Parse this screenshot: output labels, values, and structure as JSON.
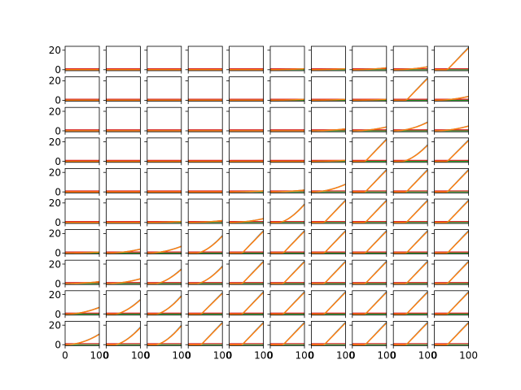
{
  "colors": {
    "series_blue": "#1f77b4",
    "series_orange": "#ff7f0e",
    "series_green": "#2ca02c",
    "series_red": "#d62728",
    "axes": "#000000",
    "background": "#ffffff"
  },
  "chart_data": {
    "type": "line",
    "layout": "small-multiples",
    "rows": 10,
    "cols": 10,
    "title": "",
    "xlabel": "",
    "ylabel": "",
    "xlim": [
      0,
      100
    ],
    "ylim": [
      -1,
      24
    ],
    "x_ticks": [
      0,
      100
    ],
    "x_tick_labels": [
      "0",
      "100"
    ],
    "y_ticks": [
      0,
      20
    ],
    "y_tick_labels": [
      "0",
      "20"
    ],
    "grid": false,
    "legend": "none",
    "series_note": "each panel shows four overlaid lines; two stay flat near 0/1 while two rise from 0 up to the final values given below",
    "panel_final_values": [
      [
        0,
        0,
        0,
        0,
        0,
        1,
        1,
        2,
        3,
        23
      ],
      [
        0,
        0,
        0,
        0,
        0,
        1,
        1,
        1,
        23,
        4
      ],
      [
        0,
        0,
        0,
        0,
        0,
        0,
        2,
        4,
        9,
        5
      ],
      [
        0,
        0,
        0,
        0,
        0,
        0,
        1,
        23,
        17,
        22
      ],
      [
        0,
        0,
        0,
        0,
        1,
        2,
        8,
        23,
        23,
        23
      ],
      [
        0,
        0,
        1,
        2,
        4,
        19,
        23,
        23,
        23,
        23
      ],
      [
        1,
        4,
        7,
        18,
        23,
        23,
        23,
        23,
        23,
        23
      ],
      [
        2,
        5,
        15,
        18,
        23,
        23,
        23,
        23,
        23,
        23
      ],
      [
        7,
        15,
        19,
        22,
        23,
        23,
        23,
        23,
        23,
        23
      ],
      [
        11,
        18,
        20,
        23,
        23,
        23,
        23,
        23,
        23,
        23
      ]
    ]
  }
}
